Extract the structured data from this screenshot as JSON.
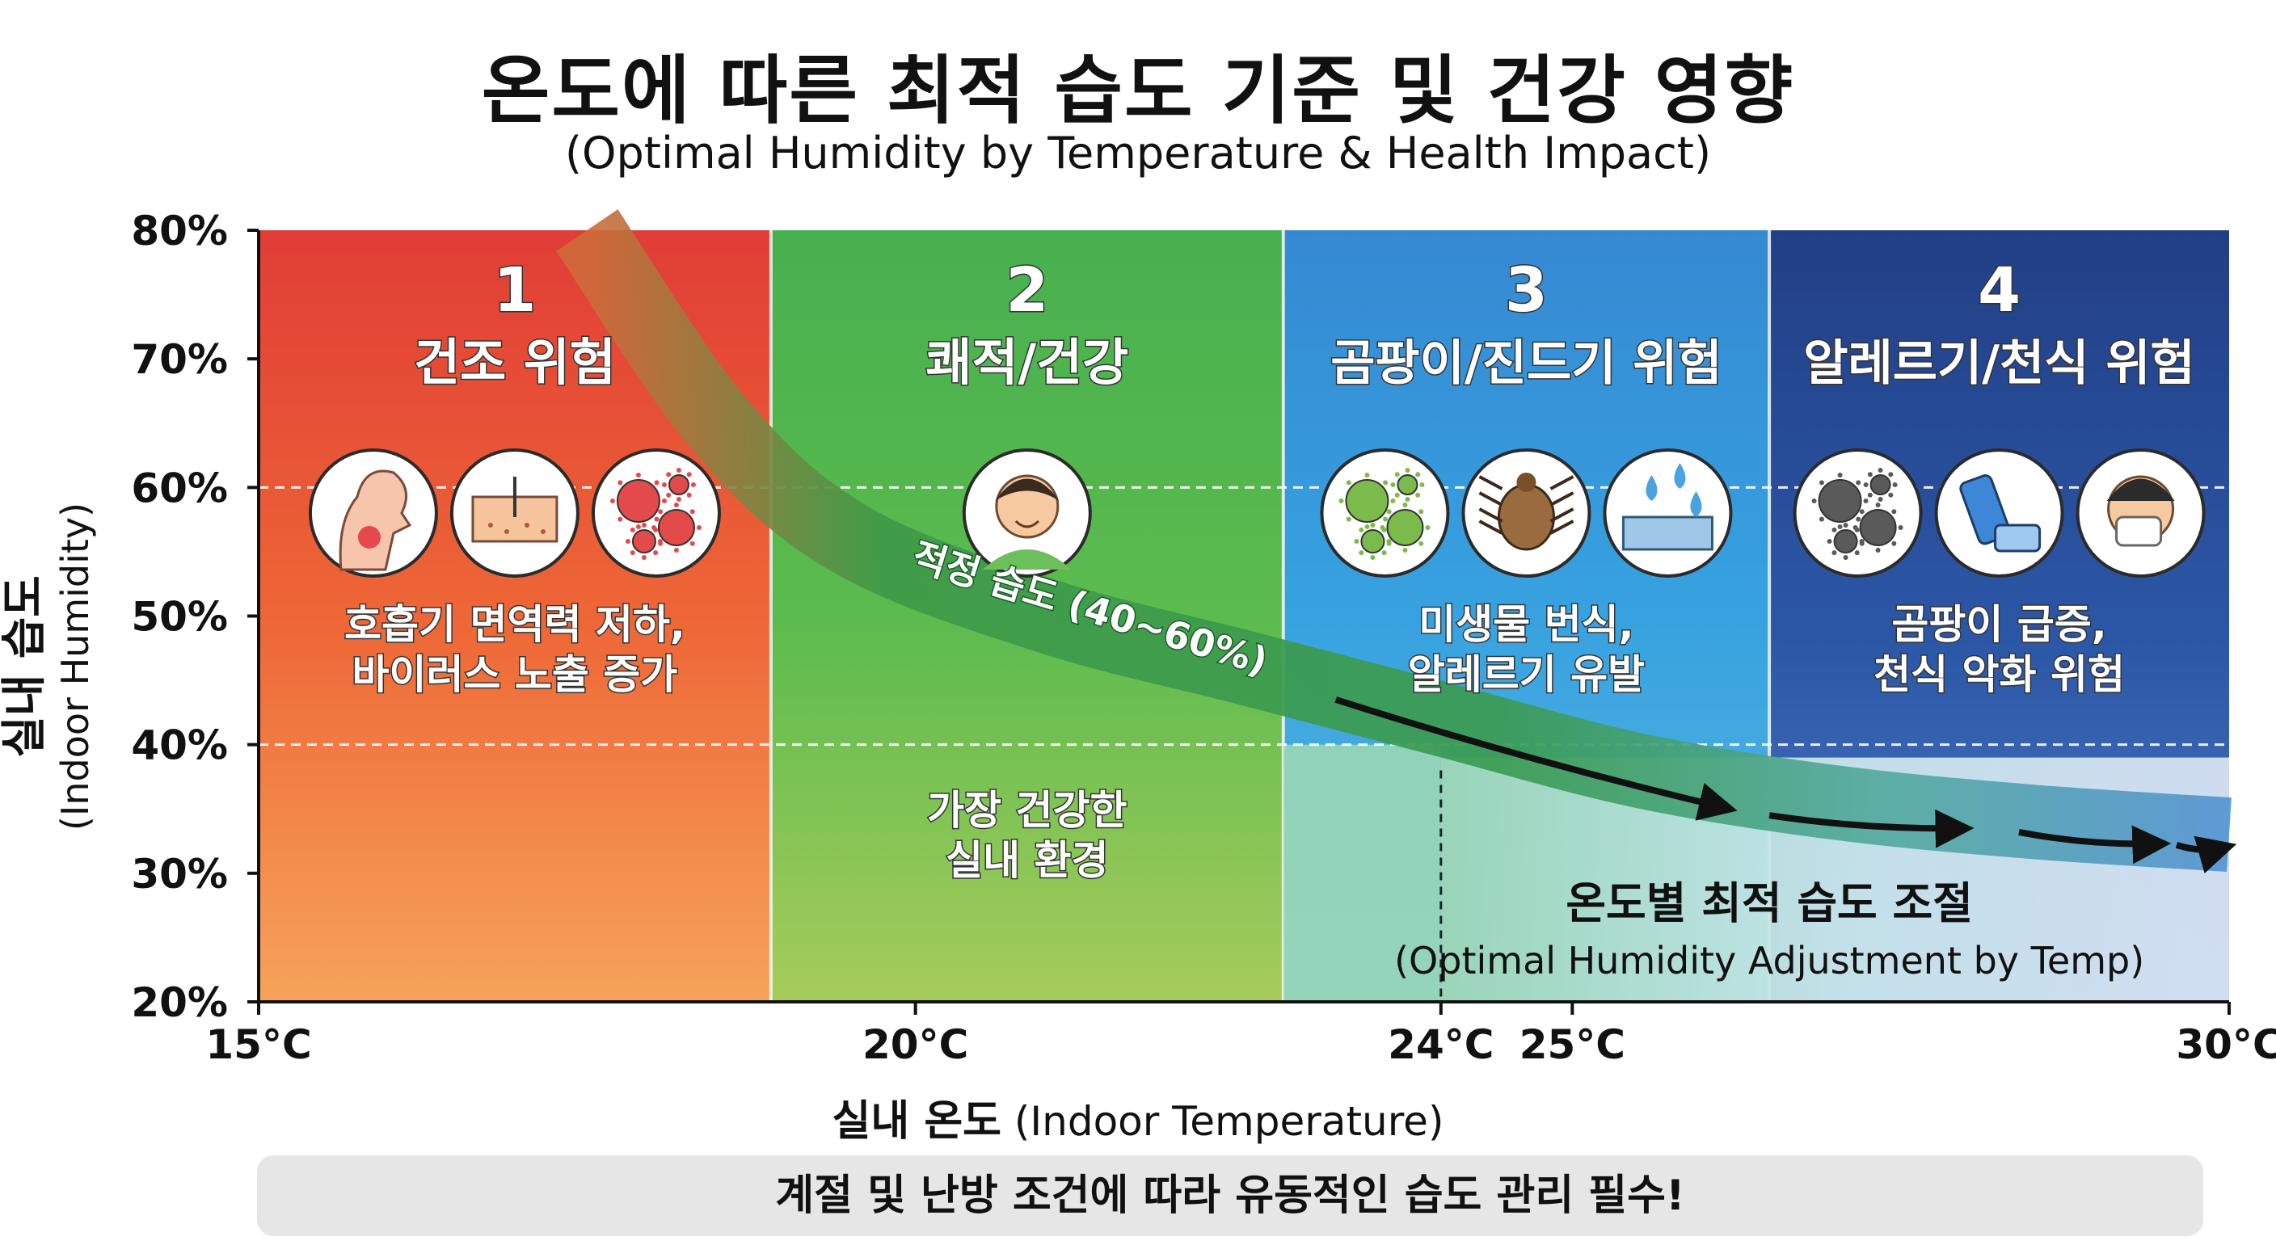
{
  "title": "온도에 따른 최적 습도 기준 및 건강 영향",
  "subtitle": "(Optimal Humidity by Temperature & Health Impact)",
  "ylabel_ko": "실내 습도",
  "ylabel_en": "(Indoor Humidity)",
  "xlabel_ko": "실내 온도",
  "xlabel_en": "(Indoor Temperature)",
  "note": "계절 및 난방 조건에 따라 유동적인 습도 관리 필수!",
  "chart_data": {
    "type": "area",
    "xlim": [
      15,
      30
    ],
    "ylim": [
      20,
      80
    ],
    "x_ticks": [
      {
        "value": 15,
        "label": "15°C"
      },
      {
        "value": 20,
        "label": "20°C"
      },
      {
        "value": 24,
        "label": "24°C"
      },
      {
        "value": 25,
        "label": "25°C"
      },
      {
        "value": 30,
        "label": "30°C"
      }
    ],
    "y_ticks": [
      {
        "value": 20,
        "label": "20%"
      },
      {
        "value": 30,
        "label": "30%"
      },
      {
        "value": 40,
        "label": "40%"
      },
      {
        "value": 50,
        "label": "50%"
      },
      {
        "value": 60,
        "label": "60%"
      },
      {
        "value": 70,
        "label": "70%"
      },
      {
        "value": 80,
        "label": "80%"
      }
    ],
    "reference_lines": [
      40,
      60
    ],
    "zones": [
      {
        "number": "1",
        "title": "건조 위험",
        "desc": [
          "호흡기 면역력 저하,",
          "바이러스 노출 증가"
        ],
        "x_start": 15,
        "x_end": 18.9,
        "color_top": "#e34a38",
        "color_mid": "#ee6a35",
        "color_low": "#f39a52",
        "icons": [
          "throat-irritation-icon",
          "dry-skin-icon",
          "virus-icon"
        ]
      },
      {
        "number": "2",
        "title": "쾌적/건강",
        "desc": [
          "가장 건강한",
          "실내 환경"
        ],
        "x_start": 18.9,
        "x_end": 22.8,
        "color_top": "#4db352",
        "color_mid": "#5bbb50",
        "color_low": "#98c95c",
        "icons": [
          "happy-person-icon"
        ]
      },
      {
        "number": "3",
        "title": "곰팡이/진드기 위험",
        "desc": [
          "미생물 번식,",
          "알레르기 유발"
        ],
        "x_start": 22.8,
        "x_end": 26.5,
        "color_top": "#3a8fd4",
        "color_mid": "#3ba4df",
        "color_low": "#93d3b2",
        "icons": [
          "bacteria-icon",
          "dust-mite-icon",
          "water-drops-icon"
        ]
      },
      {
        "number": "4",
        "title": "알레르기/천식 위험",
        "desc": [
          "곰팡이 급증,",
          "천식 악화 위험"
        ],
        "x_start": 26.5,
        "x_end": 30,
        "color_top": "#28478d",
        "color_mid": "#2d58a8",
        "color_low": "#c9d6ee",
        "icons": [
          "mold-spores-icon",
          "inhaler-icon",
          "sneezing-person-icon"
        ]
      }
    ],
    "optimal_band": {
      "label": "적정 습도 (40~60%)",
      "x": [
        17.5,
        18.5,
        19.5,
        21,
        22.5,
        24,
        25.5,
        27,
        28.5,
        30
      ],
      "y": [
        80,
        65,
        56,
        50,
        46,
        42,
        38,
        35.5,
        34,
        33
      ]
    },
    "adjustment_label": "온도별 최적 습도 조절",
    "adjustment_label_en": "(Optimal Humidity Adjustment by Temp)",
    "dashed_marker_x": 24
  }
}
